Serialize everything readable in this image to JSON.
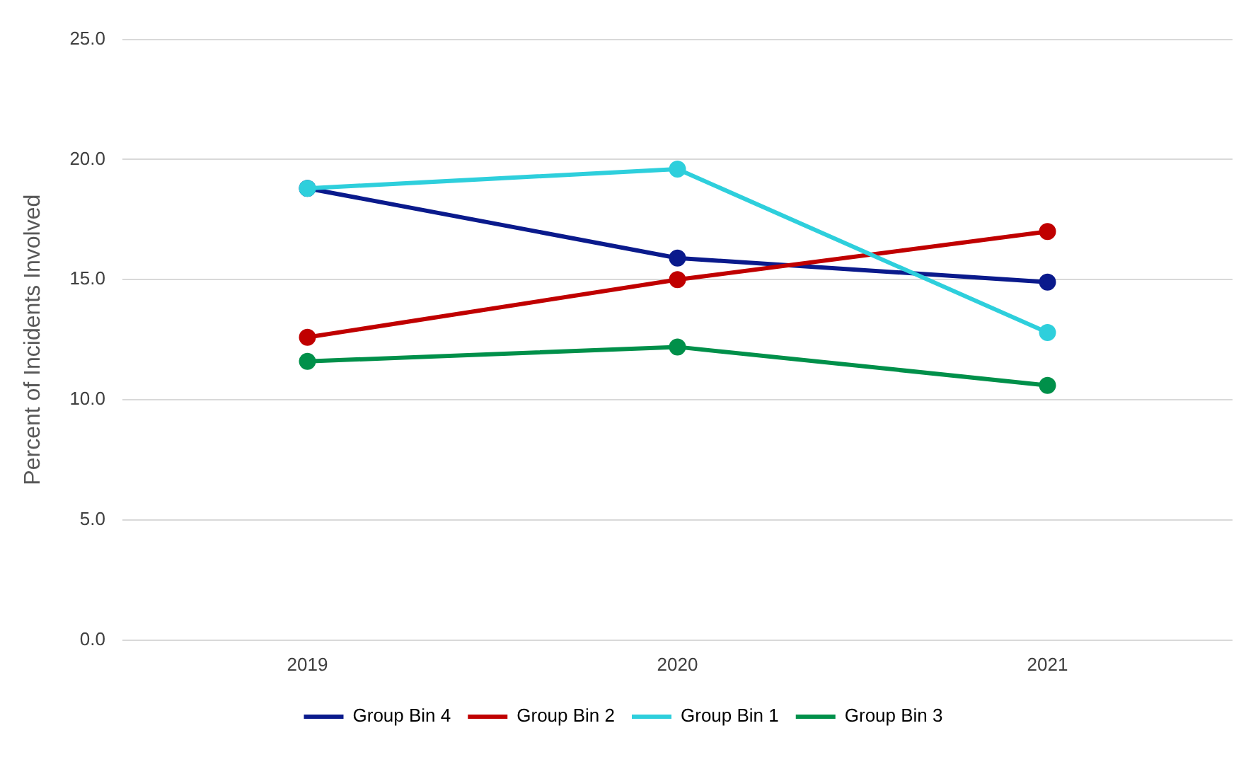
{
  "chart_data": {
    "type": "line",
    "ylabel": "Percent of Incidents Involved",
    "categories": [
      "2019",
      "2020",
      "2021"
    ],
    "series": [
      {
        "name": "Group Bin 4",
        "color": "#0a1a8c",
        "values": [
          18.8,
          15.9,
          14.9
        ]
      },
      {
        "name": "Group Bin 2",
        "color": "#c00000",
        "values": [
          12.6,
          15.0,
          17.0
        ]
      },
      {
        "name": "Group Bin 1",
        "color": "#2ecfdc",
        "values": [
          18.8,
          19.6,
          12.8
        ]
      },
      {
        "name": "Group Bin 3",
        "color": "#00904a",
        "values": [
          11.6,
          12.2,
          10.6
        ]
      }
    ],
    "ylim": [
      0,
      25
    ],
    "yticks": [
      {
        "value": 0,
        "label": "0.0"
      },
      {
        "value": 5,
        "label": "5.0"
      },
      {
        "value": 10,
        "label": "10.0"
      },
      {
        "value": 15,
        "label": "15.0"
      },
      {
        "value": 20,
        "label": "20.0"
      },
      {
        "value": 25,
        "label": "25.0"
      }
    ],
    "grid": "y",
    "legend": "bottom",
    "marker": "circle",
    "line_style": "solid"
  }
}
